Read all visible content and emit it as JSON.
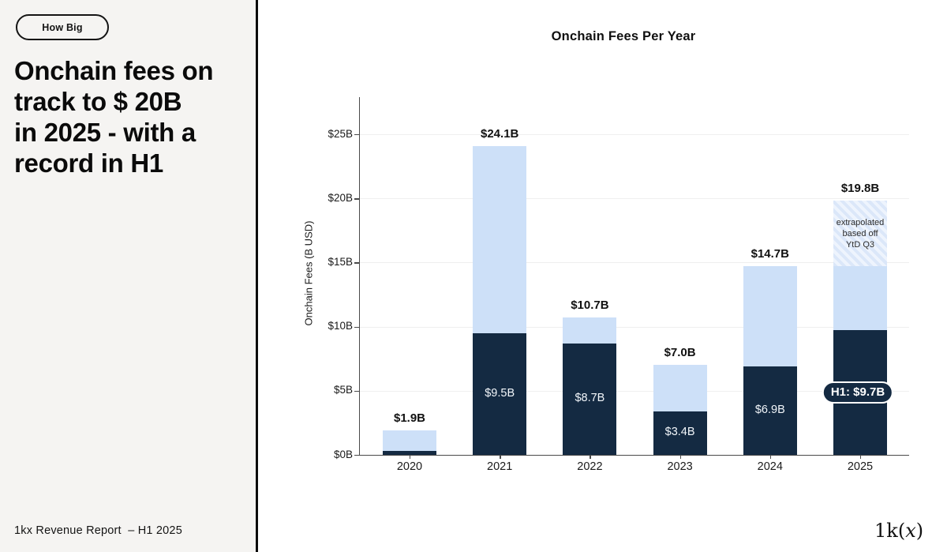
{
  "left_panel": {
    "badge_label": "How Big",
    "headline_lines": [
      "Onchain fees on",
      "track to $ 20B",
      "in 2025 - with a",
      "record in H1"
    ],
    "footer": "1kx Revenue Report  – H1 2025"
  },
  "brand": {
    "logo_prefix": "1k(",
    "logo_x": "x",
    "logo_suffix": ")"
  },
  "colors": {
    "panel_bg": "#f5f4f2",
    "divider": "#0b0b0b",
    "navy": "#142a42",
    "light_blue": "#cde0f8",
    "hatch_bg": "#dbe7f9",
    "hatch_stripe": "#eef4fd",
    "gridline": "#efefef",
    "axis": "#4a4a4a",
    "white_label": "#f2f6fa"
  },
  "chart_data": {
    "type": "bar",
    "stacked": true,
    "title": "Onchain Fees Per Year",
    "ylabel": "Onchain Fees (B USD)",
    "categories": [
      "2020",
      "2021",
      "2022",
      "2023",
      "2024",
      "2025"
    ],
    "series": [
      {
        "name": "H1 (solid navy)",
        "color": "#142a42",
        "values": [
          0.3,
          9.5,
          8.7,
          3.4,
          6.9,
          9.7
        ]
      },
      {
        "name": "rest of year (light blue)",
        "color": "#cde0f8",
        "values": [
          1.6,
          14.6,
          2.0,
          3.6,
          7.8,
          5.0
        ]
      },
      {
        "name": "extrapolated (hatched)",
        "color": "#dbe7f9",
        "values": [
          0,
          0,
          0,
          0,
          0,
          5.1
        ]
      }
    ],
    "totals": [
      1.9,
      24.1,
      10.7,
      7.0,
      14.7,
      19.8
    ],
    "total_labels": [
      "$1.9B",
      "$24.1B",
      "$10.7B",
      "$7.0B",
      "$14.7B",
      "$19.8B"
    ],
    "inside_labels": [
      "",
      "$9.5B",
      "$8.7B",
      "$3.4B",
      "$6.9B",
      ""
    ],
    "callout_2025": "H1: $9.7B",
    "hatch_annotation_lines": [
      "extrapolated",
      "based off",
      "YtD Q3"
    ],
    "ytick_labels": [
      "$0B",
      "$5B",
      "$10B",
      "$15B",
      "$20B",
      "$25B"
    ],
    "ylim": [
      0,
      27
    ],
    "grid": true,
    "legend": "none"
  }
}
